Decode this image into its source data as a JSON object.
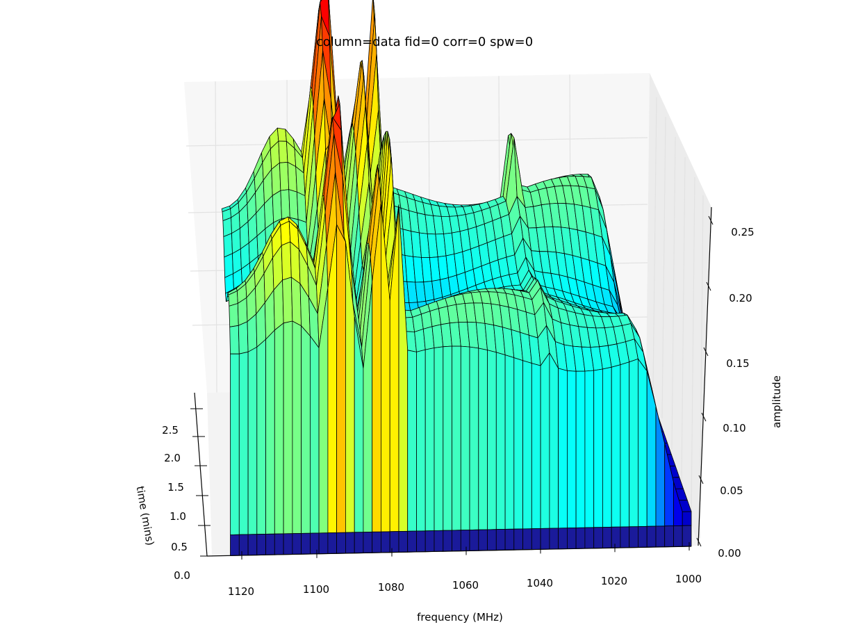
{
  "chart_data": {
    "type": "surface3d",
    "title": "column=data fid=0 corr=0 spw=0",
    "xlabel": "frequency (MHz)",
    "ylabel": "time (mins)",
    "zlabel": "amplitude",
    "colormap": "jet",
    "xlim": [
      1130,
      1000
    ],
    "ylim": [
      0,
      3.0
    ],
    "zlim": [
      0,
      0.27
    ],
    "x_ticks": [
      "1120",
      "1100",
      "1080",
      "1060",
      "1040",
      "1020",
      "1000"
    ],
    "y_ticks": [
      "0.0",
      "0.5",
      "1.0",
      "1.5",
      "2.0",
      "2.5"
    ],
    "z_ticks": [
      "0.00",
      "0.05",
      "0.10",
      "0.15",
      "0.20",
      "0.25"
    ],
    "x_tick_values": [
      1120,
      1100,
      1080,
      1060,
      1040,
      1020,
      1000
    ],
    "y_tick_values": [
      0,
      0.5,
      1.0,
      1.5,
      2.0,
      2.5
    ],
    "z_tick_values": [
      0,
      0.05,
      0.1,
      0.15,
      0.2,
      0.25
    ],
    "frequency_range_mhz": [
      1000,
      1125
    ],
    "time_range_mins": [
      0,
      2.9
    ],
    "baseline_amplitude": 0.11,
    "features": [
      {
        "kind": "spike",
        "frequency_mhz": 1097,
        "peak_amplitude": 0.25
      },
      {
        "kind": "spike",
        "frequency_mhz": 1093,
        "peak_amplitude": 0.26
      },
      {
        "kind": "spike",
        "frequency_mhz": 1085,
        "peak_amplitude": 0.24
      },
      {
        "kind": "spike",
        "frequency_mhz": 1080,
        "peak_amplitude": 0.24
      },
      {
        "kind": "hump",
        "frequency_mhz": 1108,
        "peak_amplitude": 0.16
      },
      {
        "kind": "spike",
        "frequency_mhz": 1038,
        "peak_amplitude": 0.15
      }
    ],
    "grid": true
  }
}
